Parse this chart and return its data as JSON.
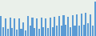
{
  "values": [
    55,
    25,
    50,
    20,
    52,
    22,
    48,
    18,
    50,
    20,
    38,
    15,
    55,
    28,
    52,
    22,
    48,
    20,
    52,
    25,
    50,
    22,
    52,
    25,
    54,
    28,
    56,
    30,
    58,
    32,
    54,
    24,
    58,
    30,
    60,
    28,
    62,
    32,
    65,
    35,
    60,
    28,
    95
  ],
  "bar_color": "#5b9bd5",
  "bar_edge_color": "#4a8bc4",
  "background_color": "#eaf0ea",
  "ylim_min": 0,
  "ylim_max": 100
}
